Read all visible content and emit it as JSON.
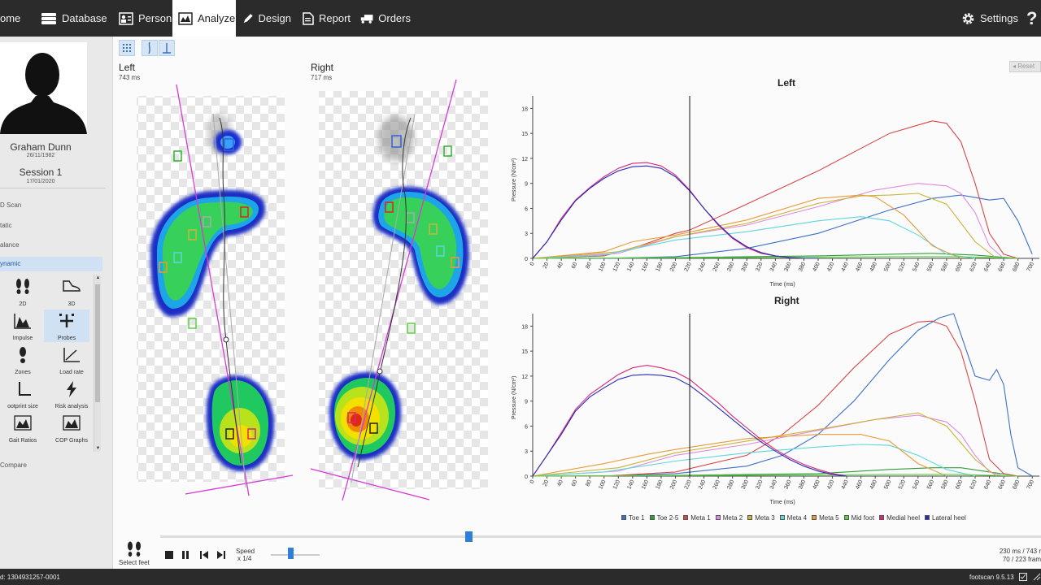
{
  "nav": {
    "items": [
      {
        "label": "ome"
      },
      {
        "label": "Database"
      },
      {
        "label": "Person"
      },
      {
        "label": "Analyze"
      },
      {
        "label": "Design"
      },
      {
        "label": "Report"
      },
      {
        "label": "Orders"
      }
    ],
    "settings_label": "Settings",
    "help_label": "?"
  },
  "sidebar": {
    "person_name": "Graham Dunn",
    "person_dob": "26/11/1982",
    "session_name": "Session 1",
    "session_date": "17/01/2020",
    "menu": [
      "D Scan",
      "tatic",
      "alance",
      "ynamic"
    ],
    "tools": [
      {
        "label": "2D",
        "icon": "footprints-icon"
      },
      {
        "label": "3D",
        "icon": "shoe-icon"
      },
      {
        "label": "Impulse",
        "icon": "impulse-icon"
      },
      {
        "label": "Probes",
        "icon": "probes-icon"
      },
      {
        "label": "Zones",
        "icon": "zones-icon"
      },
      {
        "label": "Load rate",
        "icon": "load-rate-icon"
      },
      {
        "label": "ootprint size",
        "icon": "footprint-size-icon"
      },
      {
        "label": "Risk analysis",
        "icon": "risk-icon"
      },
      {
        "label": "Gait Ratios",
        "icon": "gait-ratios-icon"
      },
      {
        "label": "COP Graphs",
        "icon": "cop-graphs-icon"
      }
    ],
    "compare_label": "Compare"
  },
  "feet": {
    "left_title": "Left",
    "left_ms": "743 ms",
    "right_title": "Right",
    "right_ms": "717 ms"
  },
  "reset_label": "Reset",
  "chart_data": [
    {
      "type": "line",
      "title": "Left",
      "xlabel": "Time (ms)",
      "ylabel": "Pressure (N/cm²)",
      "xlim": [
        0,
        710
      ],
      "ylim": [
        0,
        19.5
      ],
      "xticks": [
        0,
        20,
        40,
        60,
        80,
        100,
        120,
        140,
        160,
        180,
        200,
        220,
        240,
        260,
        280,
        300,
        320,
        340,
        360,
        380,
        400,
        420,
        440,
        460,
        480,
        500,
        520,
        540,
        560,
        580,
        600,
        620,
        640,
        660,
        680,
        700
      ],
      "yticks": [
        0,
        3,
        6,
        9,
        12,
        15,
        18
      ],
      "cursor_x": 220,
      "series": [
        {
          "name": "Toe 1",
          "color": "#3d6fc9",
          "x": [
            0,
            100,
            200,
            300,
            400,
            500,
            560,
            600,
            620,
            640,
            660,
            680,
            700
          ],
          "values": [
            0,
            0,
            0.2,
            1.2,
            3,
            5.8,
            7.2,
            7.6,
            7.3,
            7.0,
            7.2,
            4.5,
            0.5
          ]
        },
        {
          "name": "Toe 2-5",
          "color": "#2e9e3a",
          "x": [
            0,
            200,
            400,
            500,
            560,
            620,
            680
          ],
          "values": [
            0,
            0.1,
            0.3,
            0.5,
            0.6,
            0.4,
            0
          ]
        },
        {
          "name": "Meta 1",
          "color": "#d94848",
          "x": [
            0,
            100,
            150,
            200,
            220,
            300,
            400,
            500,
            560,
            580,
            600,
            620,
            640,
            660,
            680
          ],
          "values": [
            0,
            0.3,
            1.5,
            3,
            3.4,
            6.5,
            10.5,
            15,
            16.5,
            16.2,
            14,
            9,
            3,
            0.5,
            0
          ]
        },
        {
          "name": "Meta 2",
          "color": "#e28ae0",
          "x": [
            0,
            120,
            200,
            300,
            400,
            480,
            540,
            580,
            600,
            620,
            640,
            660
          ],
          "values": [
            0,
            0.6,
            2.6,
            4,
            6.2,
            8.2,
            9,
            8.7,
            7.8,
            5.5,
            1.5,
            0
          ]
        },
        {
          "name": "Meta 3",
          "color": "#c9b53a",
          "x": [
            0,
            120,
            200,
            300,
            400,
            460,
            500,
            540,
            580,
            620,
            650
          ],
          "values": [
            0,
            0.8,
            2.6,
            4.2,
            6.6,
            7.5,
            7.6,
            7.8,
            6.5,
            2,
            0
          ]
        },
        {
          "name": "Meta 4",
          "color": "#5fd6dc",
          "x": [
            0,
            100,
            200,
            300,
            400,
            460,
            500,
            540,
            580,
            620
          ],
          "values": [
            0,
            0.4,
            2.2,
            3.2,
            4.5,
            5,
            4.5,
            2.8,
            0.5,
            0
          ]
        },
        {
          "name": "Meta 5",
          "color": "#e89a3a",
          "x": [
            0,
            100,
            140,
            200,
            300,
            400,
            460,
            480,
            520,
            560,
            600
          ],
          "values": [
            0,
            0.8,
            2,
            2.8,
            4.6,
            7.2,
            7.6,
            7.4,
            5.2,
            1.5,
            0
          ]
        },
        {
          "name": "Mid foot",
          "color": "#5ad13e",
          "x": [
            0,
            300,
            500,
            600,
            680
          ],
          "values": [
            0,
            0.1,
            0.2,
            0.2,
            0
          ]
        },
        {
          "name": "Medial heel",
          "color": "#d9267a",
          "x": [
            0,
            20,
            40,
            60,
            80,
            100,
            120,
            140,
            160,
            180,
            200,
            220,
            240,
            260,
            280,
            300,
            320,
            340,
            360,
            380,
            400
          ],
          "values": [
            0,
            2,
            4.8,
            7,
            8.5,
            9.8,
            10.8,
            11.4,
            11.5,
            11.1,
            10,
            8.2,
            6,
            4,
            2.4,
            1.3,
            0.6,
            0.3,
            0.1,
            0,
            0
          ]
        },
        {
          "name": "Lateral heel",
          "color": "#2a2ab8",
          "x": [
            0,
            20,
            40,
            60,
            80,
            100,
            120,
            140,
            160,
            180,
            200,
            220,
            240,
            260,
            280,
            300,
            320,
            340,
            360,
            380,
            400
          ],
          "values": [
            0,
            2,
            4.6,
            6.9,
            8.4,
            9.6,
            10.5,
            11,
            11.1,
            10.8,
            9.8,
            8.1,
            6,
            4.1,
            2.5,
            1.4,
            0.7,
            0.3,
            0.1,
            0,
            0
          ]
        }
      ]
    },
    {
      "type": "line",
      "title": "Right",
      "xlabel": "Time (ms)",
      "ylabel": "Pressure (N/cm²)",
      "xlim": [
        0,
        710
      ],
      "ylim": [
        0,
        19.5
      ],
      "xticks": [
        0,
        20,
        40,
        60,
        80,
        100,
        120,
        140,
        160,
        180,
        200,
        220,
        240,
        260,
        280,
        300,
        320,
        340,
        360,
        380,
        400,
        420,
        440,
        460,
        480,
        500,
        520,
        540,
        560,
        580,
        600,
        620,
        640,
        660,
        680,
        700
      ],
      "yticks": [
        0,
        3,
        6,
        9,
        12,
        15,
        18
      ],
      "cursor_x": 220,
      "series": [
        {
          "name": "Toe 1",
          "color": "#3d6fc9",
          "x": [
            0,
            100,
            200,
            300,
            350,
            400,
            450,
            500,
            540,
            570,
            590,
            600,
            620,
            640,
            650,
            660,
            670,
            680,
            700
          ],
          "values": [
            0,
            0,
            0.3,
            1.2,
            2.5,
            5,
            9,
            14,
            17.5,
            19,
            19.5,
            17,
            12,
            11.5,
            12.8,
            11,
            5,
            1,
            0
          ]
        },
        {
          "name": "Toe 2-5",
          "color": "#2e9e3a",
          "x": [
            0,
            200,
            400,
            500,
            560,
            600,
            640,
            680
          ],
          "values": [
            0,
            0.1,
            0.3,
            0.8,
            1,
            1,
            0.5,
            0
          ]
        },
        {
          "name": "Meta 1",
          "color": "#d94848",
          "x": [
            0,
            100,
            200,
            300,
            350,
            400,
            450,
            500,
            540,
            560,
            580,
            600,
            620,
            640,
            660,
            680
          ],
          "values": [
            0,
            0,
            0.5,
            2.5,
            5,
            8.5,
            13,
            17,
            18.5,
            18.6,
            18,
            15,
            9,
            2,
            0.3,
            0
          ]
        },
        {
          "name": "Meta 2",
          "color": "#e28ae0",
          "x": [
            0,
            120,
            200,
            300,
            400,
            480,
            540,
            580,
            600,
            620,
            640,
            660
          ],
          "values": [
            0,
            0.6,
            2.5,
            3.8,
            5.5,
            6.8,
            7.3,
            6.5,
            5,
            2.5,
            0.5,
            0
          ]
        },
        {
          "name": "Meta 3",
          "color": "#c9b53a",
          "x": [
            0,
            120,
            200,
            300,
            400,
            480,
            540,
            580,
            620,
            650
          ],
          "values": [
            0,
            1,
            2.8,
            4.2,
            5.6,
            6.8,
            7.6,
            6,
            2,
            0
          ]
        },
        {
          "name": "Meta 4",
          "color": "#5fd6dc",
          "x": [
            0,
            100,
            200,
            300,
            400,
            460,
            500,
            540,
            580,
            620
          ],
          "values": [
            0,
            0.5,
            1.8,
            2.8,
            3.5,
            3.8,
            3.7,
            2.5,
            0.8,
            0
          ]
        },
        {
          "name": "Meta 5",
          "color": "#e89a3a",
          "x": [
            0,
            100,
            160,
            200,
            300,
            400,
            460,
            500,
            540,
            580
          ],
          "values": [
            0,
            1.5,
            2.6,
            3.2,
            4.5,
            5,
            5,
            4.2,
            1.5,
            0
          ]
        },
        {
          "name": "Mid foot",
          "color": "#5ad13e",
          "x": [
            0,
            300,
            500,
            600,
            680
          ],
          "values": [
            0,
            0.1,
            0.2,
            0.2,
            0
          ]
        },
        {
          "name": "Medial heel",
          "color": "#d9267a",
          "x": [
            0,
            20,
            40,
            60,
            80,
            100,
            120,
            140,
            160,
            180,
            200,
            220,
            240,
            260,
            280,
            300,
            320,
            340,
            360,
            380,
            400,
            420,
            440
          ],
          "values": [
            0,
            2.5,
            5.2,
            8,
            9.8,
            11,
            12.2,
            13,
            13.3,
            13,
            12.5,
            11.6,
            10.2,
            8.8,
            7.2,
            5.8,
            4.4,
            3.2,
            2.2,
            1.4,
            0.8,
            0.3,
            0
          ]
        },
        {
          "name": "Lateral heel",
          "color": "#2a2ab8",
          "x": [
            0,
            20,
            40,
            60,
            80,
            100,
            120,
            140,
            160,
            180,
            200,
            220,
            240,
            260,
            280,
            300,
            320,
            340,
            360,
            380,
            400,
            420,
            440
          ],
          "values": [
            0,
            2.5,
            5,
            7.8,
            9.5,
            10.6,
            11.6,
            12.1,
            12.2,
            12.1,
            11.8,
            10.9,
            9.6,
            8.2,
            6.8,
            5.4,
            4.1,
            3,
            2,
            1.2,
            0.6,
            0.2,
            0
          ]
        }
      ]
    }
  ],
  "legend": [
    "Toe 1",
    "Toe 2-5",
    "Meta 1",
    "Meta 2",
    "Meta 3",
    "Meta 4",
    "Meta 5",
    "Mid foot",
    "Medial heel",
    "Lateral heel"
  ],
  "playback": {
    "select_feet_label": "Select feet",
    "speed_label": "Speed",
    "speed_value": "x 1/4",
    "timeline_fraction": 0.35,
    "time_readout": "230 ms / 743 r",
    "frame_readout": "70 / 223 fram"
  },
  "status": {
    "id_text": "d: 1304931257-0001",
    "version_text": "footscan 9.5.13"
  }
}
